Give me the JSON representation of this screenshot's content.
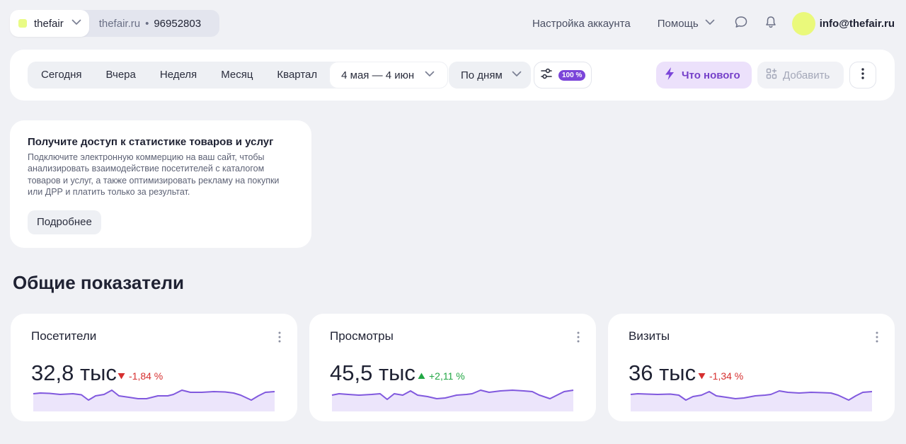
{
  "header": {
    "site_name": "thefair",
    "site_domain": "thefair.ru",
    "separator": "•",
    "counter_id": "96952803",
    "account_settings": "Настройка аккаунта",
    "help": "Помощь",
    "user_email": "info@thefair.ru"
  },
  "toolbar": {
    "periods": [
      "Сегодня",
      "Вчера",
      "Неделя",
      "Месяц",
      "Квартал"
    ],
    "date_range": "4 мая — 4 июн",
    "grouping": "По дням",
    "sample_badge": "100 %",
    "whats_new": "Что нового",
    "add": "Добавить"
  },
  "promo": {
    "title": "Получите доступ к статистике товаров и услуг",
    "text": "Подключите электронную коммерцию на ваш сайт, чтобы анализировать взаимодействие посетителей с каталогом товаров и услуг, а также оптимизировать рекламу на покупки или ДРР и платить только за результат.",
    "button": "Подробнее"
  },
  "metrics_title": "Общие показатели",
  "metrics": [
    {
      "title": "Посетители",
      "value": "32,8 тыс",
      "delta": "-1,84 %",
      "direction": "down"
    },
    {
      "title": "Просмотры",
      "value": "45,5 тыс",
      "delta": "+2,11 %",
      "direction": "up"
    },
    {
      "title": "Визиты",
      "value": "36 тыс",
      "delta": "-1,34 %",
      "direction": "down"
    }
  ],
  "colors": {
    "accent": "#7b45d9",
    "accent_bg": "#ece1fb",
    "site_dot": "#e9fb85",
    "negative": "#d62f2f",
    "positive": "#22a744",
    "sparkline": "#8159de"
  },
  "icons": {
    "site_select": "chevron-down-icon",
    "chat": "chat-bubble-icon",
    "notifications": "bell-icon",
    "sample": "sliders-icon",
    "whats_new": "lightning-icon",
    "add": "widgets-plus-icon",
    "more": "vertical-dots-icon"
  }
}
